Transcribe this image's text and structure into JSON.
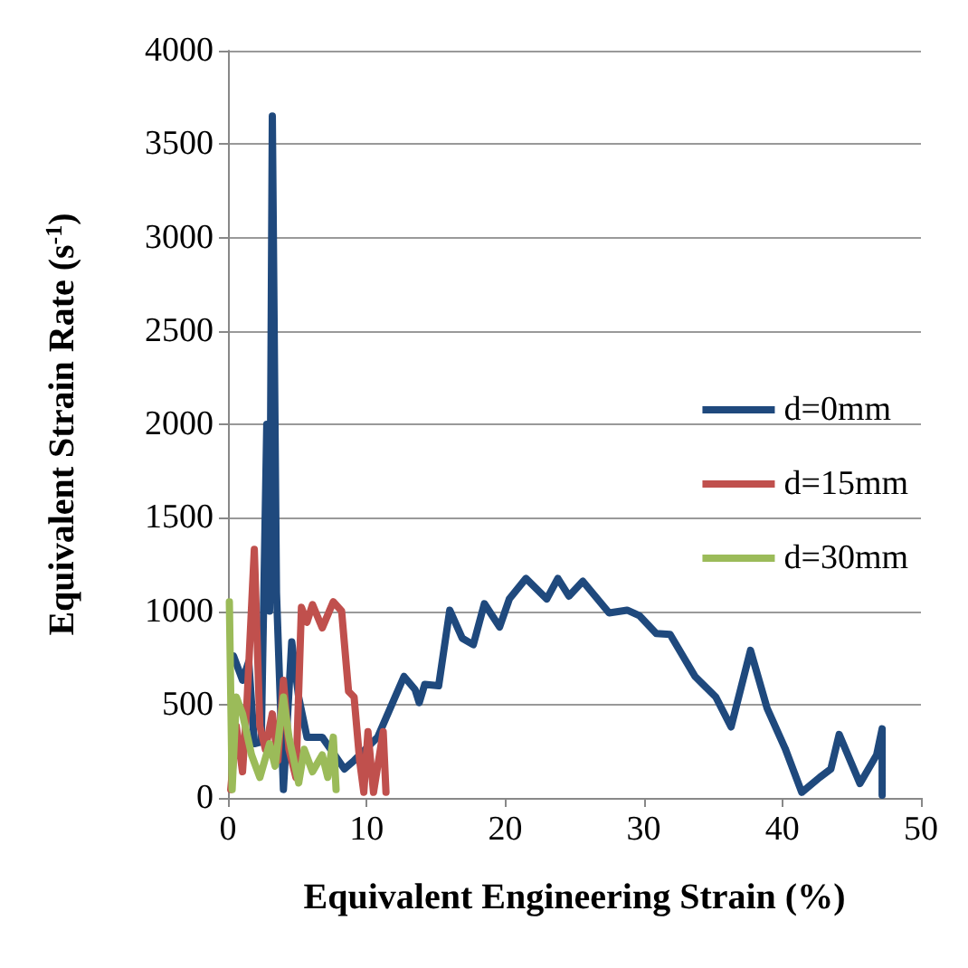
{
  "chart_data": {
    "type": "line",
    "xlabel": "Equivalent Engineering Strain (%)",
    "ylabel": "Equivalent Strain Rate (s$^{-1}$)",
    "xlim": [
      0,
      50
    ],
    "xticks": [
      0,
      10,
      20,
      30,
      40,
      50
    ],
    "ylim": [
      0,
      4000
    ],
    "yticks": [
      0,
      500,
      1000,
      1500,
      2000,
      2500,
      3000,
      3500,
      4000
    ],
    "grid": "y",
    "legend": "right",
    "marker": "none",
    "line_style": "solid",
    "series": [
      {
        "name": "d=0mm",
        "color": "#1f497d",
        "x": [
          0.4,
          1.05,
          1.5,
          1.9,
          2.4,
          2.8,
          3.0,
          3.2,
          3.5,
          4.0,
          4.6,
          5.1,
          5.7,
          6.8,
          8.4,
          9.1,
          10.8,
          12.7,
          13.5,
          13.8,
          14.2,
          15.2,
          16.0,
          16.9,
          17.7,
          18.5,
          19.6,
          20.3,
          21.5,
          23.0,
          23.8,
          24.6,
          25.6,
          27.5,
          28.8,
          29.7,
          30.9,
          31.9,
          33.7,
          35.2,
          36.3,
          37.7,
          38.9,
          40.2,
          41.4,
          42.7,
          43.5,
          44.1,
          45.6,
          46.8,
          47.2,
          47.2
        ],
        "values": [
          760,
          630,
          730,
          290,
          300,
          2000,
          1000,
          3650,
          1100,
          45,
          835,
          540,
          325,
          325,
          155,
          200,
          325,
          650,
          580,
          510,
          608,
          600,
          1005,
          855,
          820,
          1040,
          915,
          1065,
          1175,
          1065,
          1175,
          1080,
          1160,
          990,
          1005,
          975,
          880,
          875,
          650,
          540,
          380,
          790,
          480,
          265,
          30,
          110,
          155,
          340,
          77,
          230,
          370,
          15
        ]
      },
      {
        "name": "d=15mm",
        "color": "#c0504d",
        "x": [
          0.2,
          0.6,
          1.05,
          1.35,
          1.9,
          2.3,
          2.7,
          3.2,
          3.6,
          4.0,
          4.4,
          4.9,
          5.3,
          5.7,
          6.1,
          6.8,
          7.6,
          8.2,
          8.7,
          9.1,
          9.5,
          9.8,
          10.1,
          10.5,
          11.2,
          11.4
        ],
        "values": [
          45,
          385,
          140,
          480,
          1330,
          385,
          260,
          450,
          200,
          630,
          260,
          110,
          1020,
          940,
          1035,
          910,
          1050,
          1000,
          570,
          540,
          200,
          30,
          355,
          30,
          355,
          30
        ]
      },
      {
        "name": "d=30mm",
        "color": "#9bbb59",
        "x": [
          0.1,
          0.3,
          0.6,
          1.05,
          1.7,
          2.3,
          3.0,
          3.4,
          4.0,
          4.4,
          5.1,
          5.5,
          6.1,
          6.8,
          7.2,
          7.6,
          7.8
        ],
        "values": [
          1050,
          45,
          540,
          450,
          230,
          110,
          290,
          170,
          540,
          325,
          80,
          260,
          140,
          230,
          110,
          325,
          45
        ]
      }
    ]
  }
}
